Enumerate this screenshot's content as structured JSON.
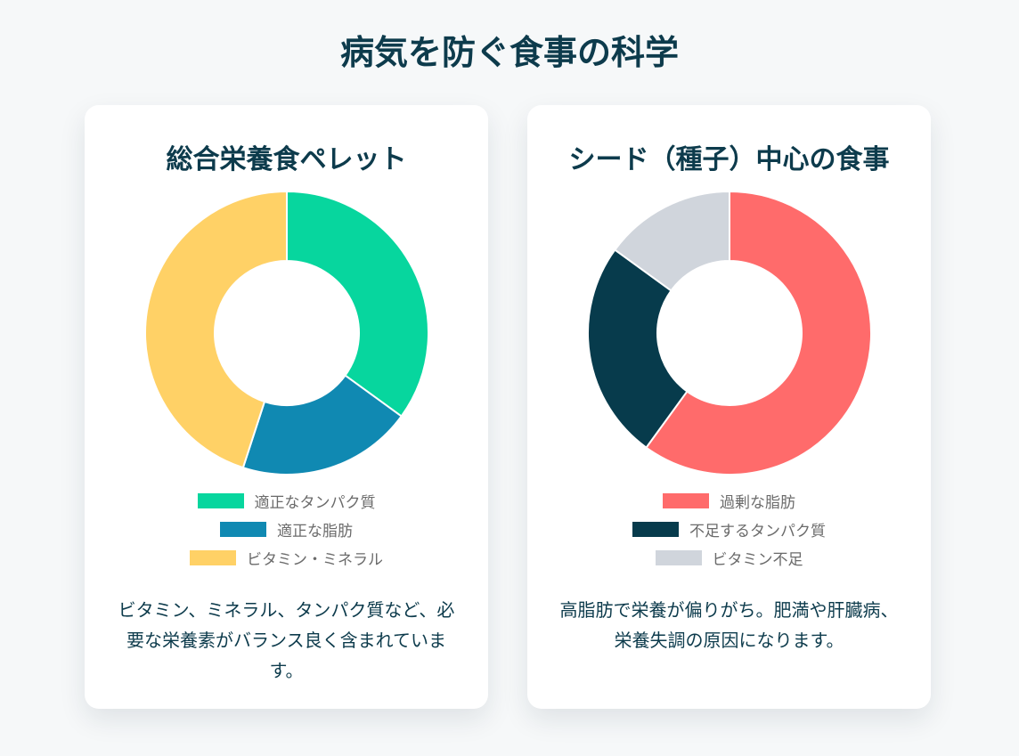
{
  "page": {
    "title": "病気を防ぐ食事の科学"
  },
  "chart_data": [
    {
      "type": "pie",
      "title": "総合栄養食ペレット",
      "categories": [
        "適正なタンパク質",
        "適正な脂肪",
        "ビタミン・ミネラル"
      ],
      "values": [
        35,
        20,
        45
      ],
      "colors": [
        "#07d69e",
        "#1089b2",
        "#ffd166"
      ],
      "legend": "bottom",
      "description": "ビタミン、ミネラル、タンパク質など、必要な栄養素がバランス良く含まれています。"
    },
    {
      "type": "pie",
      "title": "シード（種子）中心の食事",
      "categories": [
        "過剰な脂肪",
        "不足するタンパク質",
        "ビタミン不足"
      ],
      "values": [
        60,
        25,
        15
      ],
      "colors": [
        "#ff6b6b",
        "#073b4c",
        "#d0d5dc"
      ],
      "legend": "bottom",
      "description": "高脂肪で栄養が偏りがち。肥満や肝臓病、栄養失調の原因になります。"
    }
  ]
}
